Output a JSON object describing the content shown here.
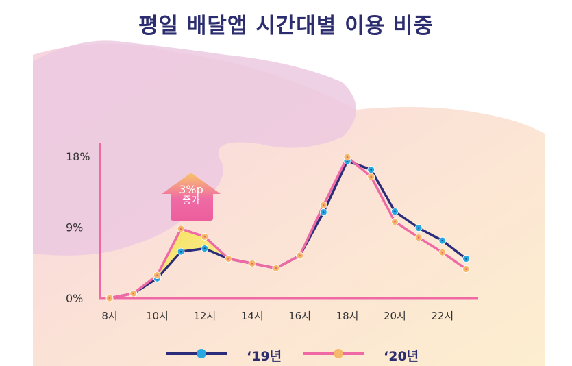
{
  "title": "평일 배달앱 시간대별 이용 비중",
  "chart_data": {
    "type": "line",
    "title": "평일 배달앱 시간대별 이용 비중",
    "x": [
      8,
      9,
      10,
      11,
      12,
      13,
      14,
      15,
      16,
      17,
      18,
      19,
      20,
      21,
      22,
      23
    ],
    "x_tick_labels": [
      "8시",
      "10시",
      "12시",
      "14시",
      "16시",
      "18시",
      "20시",
      "22시"
    ],
    "x_tick_values": [
      8,
      10,
      12,
      14,
      16,
      18,
      20,
      22
    ],
    "y_tick_labels": [
      "0%",
      "9%",
      "18%"
    ],
    "y_tick_values": [
      0,
      9,
      18
    ],
    "ylim": [
      0,
      18
    ],
    "series": [
      {
        "name": "‘19년",
        "color": "#2b2d7a",
        "marker": "#29a8e0",
        "values": [
          0,
          0.6,
          2.5,
          5.9,
          6.3,
          5.0,
          4.4,
          3.8,
          5.4,
          10.9,
          17.4,
          16.3,
          11.0,
          8.9,
          7.3,
          5.0
        ]
      },
      {
        "name": "‘20년",
        "color": "#ef6aa5",
        "marker": "#f6b86a",
        "values": [
          0,
          0.6,
          2.9,
          8.8,
          7.8,
          5.0,
          4.4,
          3.8,
          5.4,
          11.8,
          17.9,
          15.4,
          9.7,
          7.7,
          5.8,
          3.7
        ]
      }
    ],
    "annotation": {
      "line1": "3%p",
      "line2": "증가"
    },
    "legend": "bottom"
  }
}
